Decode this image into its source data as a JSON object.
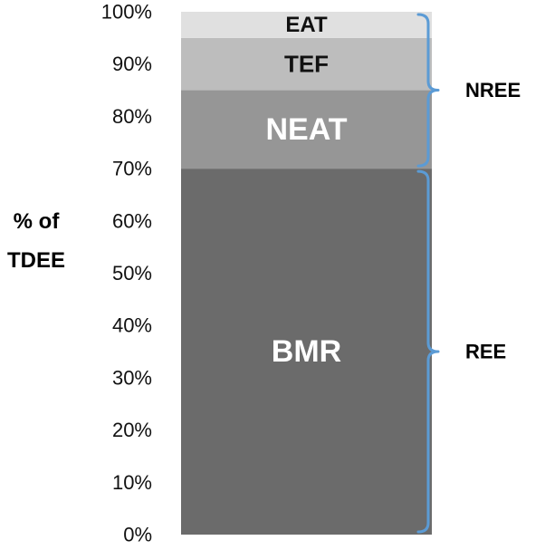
{
  "chart_data": {
    "type": "bar",
    "stacked": true,
    "ylabel": [
      "% of",
      "TDEE"
    ],
    "ylim": [
      0,
      100
    ],
    "yticks": [
      "0%",
      "10%",
      "20%",
      "30%",
      "40%",
      "50%",
      "60%",
      "70%",
      "80%",
      "90%",
      "100%"
    ],
    "grid": false,
    "segments": [
      {
        "label": "BMR",
        "value": 70,
        "color": "#6b6b6b",
        "text_color": "#ffffff"
      },
      {
        "label": "NEAT",
        "value": 15,
        "color": "#969696",
        "text_color": "#ffffff"
      },
      {
        "label": "TEF",
        "value": 10,
        "color": "#bdbdbd",
        "text_color": "#111111"
      },
      {
        "label": "EAT",
        "value": 5,
        "color": "#e0e0e0",
        "text_color": "#111111"
      }
    ],
    "groups": [
      {
        "label": "REE",
        "from": 0,
        "to": 70
      },
      {
        "label": "NREE",
        "from": 70,
        "to": 100
      }
    ],
    "brace_color": "#5b9bd5"
  }
}
